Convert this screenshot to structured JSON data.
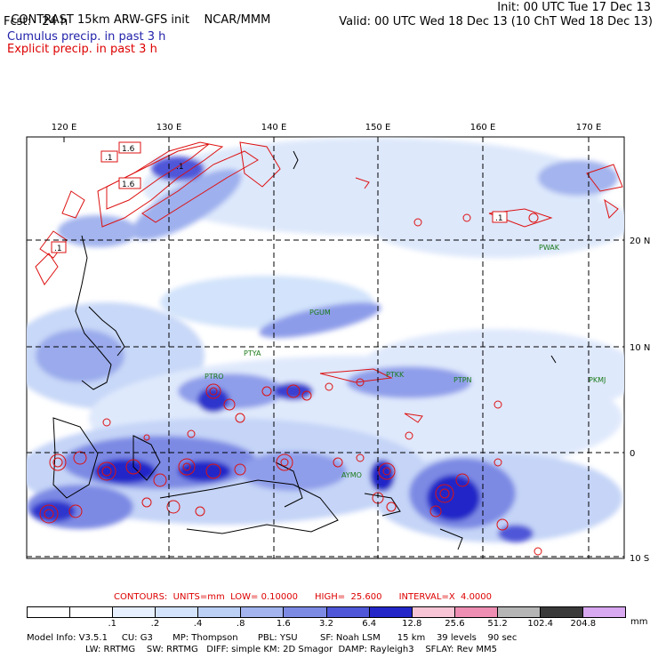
{
  "header": {
    "title": "CONTRAST 15km ARW-GFS init",
    "org": "NCAR/MMM",
    "init": "Init: 00 UTC Tue 17 Dec 13",
    "fcst": "Fcst:   24 h",
    "valid": "Valid: 00 UTC Wed 18 Dec 13 (10 ChT Wed 18 Dec 13)",
    "cumulus": "Cumulus precip. in past 3 h",
    "explicit": "Explicit precip. in past 3 h"
  },
  "map": {
    "lon_labels": [
      "120 E",
      "130 E",
      "140 E",
      "150 E",
      "160 E",
      "170 E"
    ],
    "lat_labels": [
      "20 N",
      "10 N",
      "0",
      "10 S"
    ],
    "stations": [
      "PGUM",
      "PTYA",
      "PTRO",
      "PTKK",
      "PTPN",
      "PKMJ",
      "PWAK",
      "AYMO"
    ],
    "contour_labels": [
      ".1",
      "1.6",
      ".1",
      "1.6",
      ".1",
      ".1"
    ]
  },
  "legend": {
    "contours": "CONTOURS:  UNITS=mm  LOW= 0.10000      HIGH=  25.600      INTERVAL=X  4.0000",
    "values": [
      ".1",
      ".2",
      ".4",
      ".8",
      "1.6",
      "3.2",
      "6.4",
      "12.8",
      "25.6",
      "51.2",
      "102.4",
      "204.8"
    ],
    "unit": "mm",
    "colors": [
      "#ffffff",
      "#ffffff",
      "#e6f0ff",
      "#d2e3fb",
      "#bcd0f6",
      "#a3b4ee",
      "#7d8ae4",
      "#4f57d8",
      "#2426c8",
      "#f7c5d6",
      "#ee8eb2",
      "#b5b5b5",
      "#3a3a3a",
      "#d8a8f0"
    ]
  },
  "model_info": {
    "line1": "Model Info: V3.5.1     CU: G3       MP: Thompson       PBL: YSU        SF: Noah LSM      15 km    39 levels    90 sec",
    "line2": "LW: RRTMG    SW: RRTMG   DIFF: simple KM: 2D Smagor  DAMP: Rayleigh3    SFLAY: Rev MM5"
  }
}
